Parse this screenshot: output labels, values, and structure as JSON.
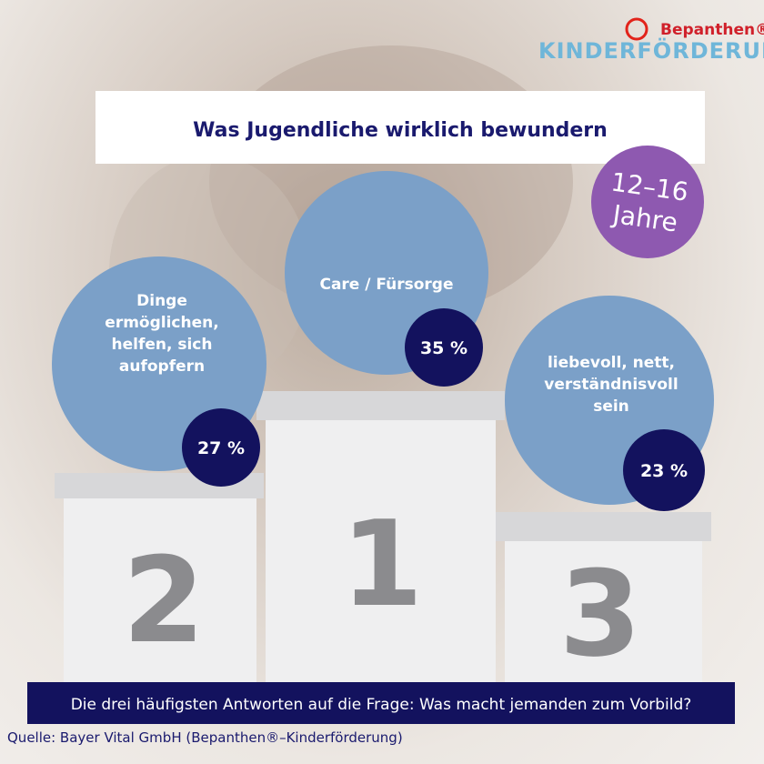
{
  "logo": {
    "brand": "Bepanthen®",
    "program": "KINDERFÖRDERUNG"
  },
  "title": "Was Jugendliche wirklich bewundern",
  "badge": {
    "lines": [
      "12–16",
      "Jahre"
    ]
  },
  "podium": [
    {
      "rank": "2",
      "label": [
        "Dinge",
        "ermöglichen,",
        "helfen, sich",
        "aufopfern"
      ],
      "value": "27 %"
    },
    {
      "rank": "1",
      "label": [
        "Care / Fürsorge"
      ],
      "value": "35 %"
    },
    {
      "rank": "3",
      "label": [
        "liebevoll, nett,",
        "verständnisvoll",
        "sein"
      ],
      "value": "23 %"
    }
  ],
  "caption": "Die drei häufigsten Antworten auf die Frage: Was macht jemanden zum Vorbild?",
  "source": "Quelle: Bayer Vital GmbH (Bepanthen®–Kinderförderung)"
}
